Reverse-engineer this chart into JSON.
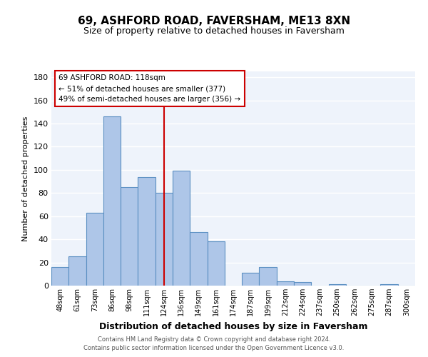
{
  "title": "69, ASHFORD ROAD, FAVERSHAM, ME13 8XN",
  "subtitle": "Size of property relative to detached houses in Faversham",
  "xlabel": "Distribution of detached houses by size in Faversham",
  "ylabel": "Number of detached properties",
  "bar_labels": [
    "48sqm",
    "61sqm",
    "73sqm",
    "86sqm",
    "98sqm",
    "111sqm",
    "124sqm",
    "136sqm",
    "149sqm",
    "161sqm",
    "174sqm",
    "187sqm",
    "199sqm",
    "212sqm",
    "224sqm",
    "237sqm",
    "250sqm",
    "262sqm",
    "275sqm",
    "287sqm",
    "300sqm"
  ],
  "bar_values": [
    16,
    25,
    63,
    146,
    85,
    94,
    80,
    99,
    46,
    38,
    0,
    11,
    16,
    4,
    3,
    0,
    1,
    0,
    0,
    1,
    0
  ],
  "bar_color": "#aec6e8",
  "bar_edge_color": "#5a8fc2",
  "vline_color": "#cc0000",
  "vline_x": 6.5,
  "ylim": [
    0,
    185
  ],
  "yticks": [
    0,
    20,
    40,
    60,
    80,
    100,
    120,
    140,
    160,
    180
  ],
  "annotation_box_text": "69 ASHFORD ROAD: 118sqm\n← 51% of detached houses are smaller (377)\n49% of semi-detached houses are larger (356) →",
  "footer_line1": "Contains HM Land Registry data © Crown copyright and database right 2024.",
  "footer_line2": "Contains public sector information licensed under the Open Government Licence v3.0.",
  "background_color": "#eef3fb",
  "grid_color": "#ffffff",
  "fig_bg_color": "#ffffff"
}
